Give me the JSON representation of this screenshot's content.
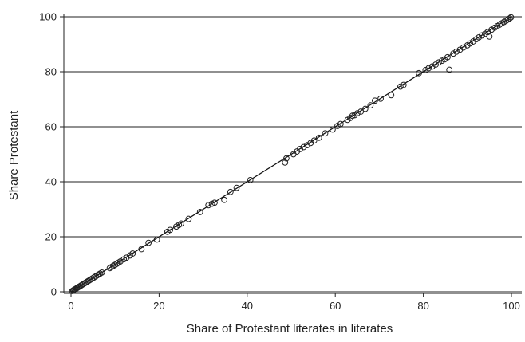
{
  "chart_data": {
    "type": "scatter",
    "title": "",
    "xlabel": "Share of Protestant literates in literates",
    "ylabel": "Share Protestant",
    "xlim": [
      0,
      100
    ],
    "ylim": [
      0,
      100
    ],
    "xticks": [
      0,
      20,
      40,
      60,
      80,
      100
    ],
    "yticks": [
      0,
      20,
      40,
      60,
      80,
      100
    ],
    "grid": "horizontal",
    "marker": "hollow-circle",
    "fit_line": {
      "x": [
        0,
        100
      ],
      "y": [
        0,
        100
      ]
    },
    "colors": {
      "marker": "#222222",
      "line": "#111111",
      "grid": "#222222"
    },
    "series": [
      {
        "x": [
          0.3,
          0.5,
          0.6,
          0.8,
          1.0,
          1.2,
          1.4,
          1.6,
          1.8,
          2.0,
          2.3,
          2.6,
          2.9,
          3.2,
          3.5,
          3.8,
          4.1,
          4.4,
          4.8,
          5.2,
          5.6,
          6.0,
          6.3,
          6.6,
          7.0,
          8.8,
          9.2,
          9.6,
          10.0,
          10.4,
          10.8,
          11.2,
          12.0,
          12.6,
          13.4,
          14.0,
          16.0,
          17.6,
          19.5,
          21.9,
          22.5,
          23.9,
          24.5,
          25.0,
          26.7,
          29.3,
          31.2,
          32.0,
          32.6,
          34.8,
          36.2,
          37.6,
          40.7,
          48.6,
          48.9,
          50.5,
          51.3,
          52.0,
          52.8,
          53.6,
          54.4,
          55.2,
          56.3,
          57.7,
          59.4,
          60.5,
          61.2,
          62.8,
          63.4,
          63.9,
          64.4,
          65.0,
          65.8,
          66.8,
          68.0,
          69.0,
          70.3,
          72.7,
          74.8,
          75.5,
          79.0,
          80.5,
          81.2,
          82.0,
          82.8,
          83.5,
          84.2,
          84.8,
          85.5,
          85.9,
          86.8,
          87.5,
          88.3,
          89.1,
          90.0,
          90.6,
          91.3,
          92.0,
          92.6,
          93.3,
          94.0,
          94.6,
          95.0,
          95.5,
          96.2,
          96.8,
          97.3,
          97.8,
          98.3,
          98.8,
          99.2,
          99.6,
          99.9
        ],
        "y": [
          0.3,
          0.5,
          0.6,
          0.8,
          1.0,
          1.2,
          1.4,
          1.6,
          1.8,
          2.0,
          2.3,
          2.6,
          2.9,
          3.2,
          3.5,
          3.8,
          4.1,
          4.4,
          4.8,
          5.2,
          5.6,
          6.0,
          6.3,
          6.6,
          7.0,
          8.6,
          9.0,
          9.4,
          9.8,
          10.2,
          10.6,
          11.0,
          11.8,
          12.4,
          13.2,
          13.9,
          15.5,
          17.8,
          19.0,
          21.8,
          22.5,
          23.7,
          24.3,
          24.8,
          26.5,
          29.0,
          31.5,
          32.0,
          32.4,
          33.4,
          36.3,
          37.8,
          40.6,
          47.0,
          48.5,
          50.0,
          51.0,
          51.9,
          52.6,
          53.3,
          54.1,
          55.0,
          56.0,
          57.6,
          59.0,
          60.3,
          61.0,
          62.5,
          63.2,
          64.0,
          64.2,
          64.9,
          65.5,
          66.5,
          67.8,
          69.5,
          70.2,
          71.5,
          74.6,
          75.2,
          79.5,
          80.6,
          81.3,
          81.9,
          82.6,
          83.4,
          84.0,
          84.5,
          85.3,
          80.7,
          86.6,
          87.3,
          88.0,
          88.8,
          89.6,
          90.3,
          91.0,
          91.8,
          92.5,
          93.2,
          93.8,
          94.4,
          92.8,
          95.3,
          96.0,
          96.6,
          97.1,
          97.6,
          98.1,
          98.6,
          99.0,
          99.4,
          99.8
        ]
      }
    ]
  }
}
